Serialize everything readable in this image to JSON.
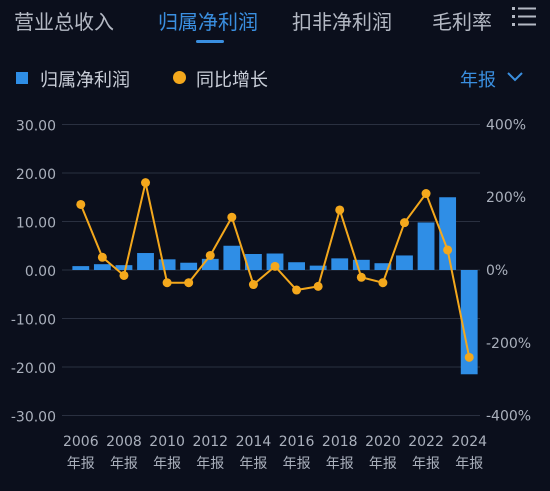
{
  "tabs": [
    {
      "label": "营业总收入",
      "active": false
    },
    {
      "label": "归属净利润",
      "active": true
    },
    {
      "label": "扣非净利润",
      "active": false
    },
    {
      "label": "毛利率",
      "active": false
    }
  ],
  "icons": {
    "menu": "list-menu-icon",
    "dropdown": "chevron-down-icon"
  },
  "legend": {
    "bar_label": "归属净利润",
    "line_label": "同比增长"
  },
  "period_selector": "年报",
  "colors": {
    "accent": "#3a8fe0",
    "bar": "#2f8ee6",
    "line": "#f4a81c",
    "background": "#0b0f1c"
  },
  "chart_data": {
    "type": "bar",
    "categories": [
      "2006",
      "2007",
      "2008",
      "2009",
      "2010",
      "2011",
      "2012",
      "2013",
      "2014",
      "2015",
      "2016",
      "2017",
      "2018",
      "2019",
      "2020",
      "2021",
      "2022",
      "2023",
      "2024"
    ],
    "x_tick_labels": [
      "2006",
      "2008",
      "2010",
      "2012",
      "2014",
      "2016",
      "2018",
      "2020",
      "2022",
      "2024"
    ],
    "x_sub_label": "年报",
    "series": [
      {
        "name": "归属净利润",
        "type": "bar",
        "axis": "left",
        "values": [
          0.8,
          1.2,
          1.0,
          3.5,
          2.2,
          1.5,
          2.3,
          5.0,
          3.3,
          3.4,
          1.6,
          0.9,
          2.4,
          2.1,
          1.4,
          3.0,
          9.8,
          15.0,
          -21.5
        ]
      },
      {
        "name": "同比增长",
        "type": "line",
        "axis": "right",
        "values": [
          180,
          35,
          -15,
          240,
          -35,
          -35,
          40,
          145,
          -40,
          10,
          -55,
          -45,
          165,
          -20,
          -35,
          130,
          210,
          55,
          -240
        ]
      }
    ],
    "y_left": {
      "ticks": [
        "30.00",
        "20.00",
        "10.00",
        "0.00",
        "-10.00",
        "-20.00",
        "-30.00"
      ],
      "lim": [
        -30,
        30
      ]
    },
    "y_right": {
      "ticks": [
        "400%",
        "200%",
        "0%",
        "-200%",
        "-400%"
      ],
      "lim": [
        -400,
        400
      ]
    },
    "grid": true,
    "legend_position": "top-left"
  }
}
